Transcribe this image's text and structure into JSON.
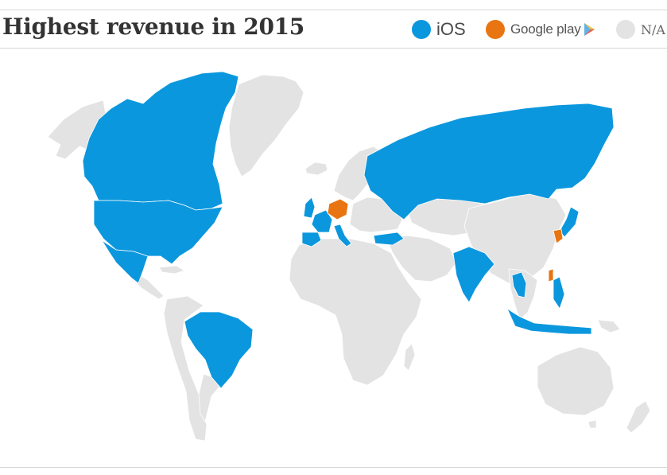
{
  "header": {
    "title": "Highest revenue in 2015"
  },
  "legend": {
    "ios": {
      "label": "iOS",
      "color": "#0b97dd"
    },
    "google_play": {
      "label": "Google play",
      "color": "#e87511",
      "icon": "play-store-triangle-icon"
    },
    "na": {
      "label": "N/A",
      "color": "#e3e3e3"
    }
  },
  "map": {
    "ios_countries": [
      "Canada",
      "United States",
      "Mexico",
      "Brazil",
      "United Kingdom",
      "France",
      "Spain",
      "Italy",
      "Turkey",
      "Russia",
      "India",
      "Thailand",
      "Philippines",
      "Indonesia",
      "Japan"
    ],
    "google_play_countries": [
      "Germany",
      "South Korea",
      "Taiwan"
    ]
  }
}
